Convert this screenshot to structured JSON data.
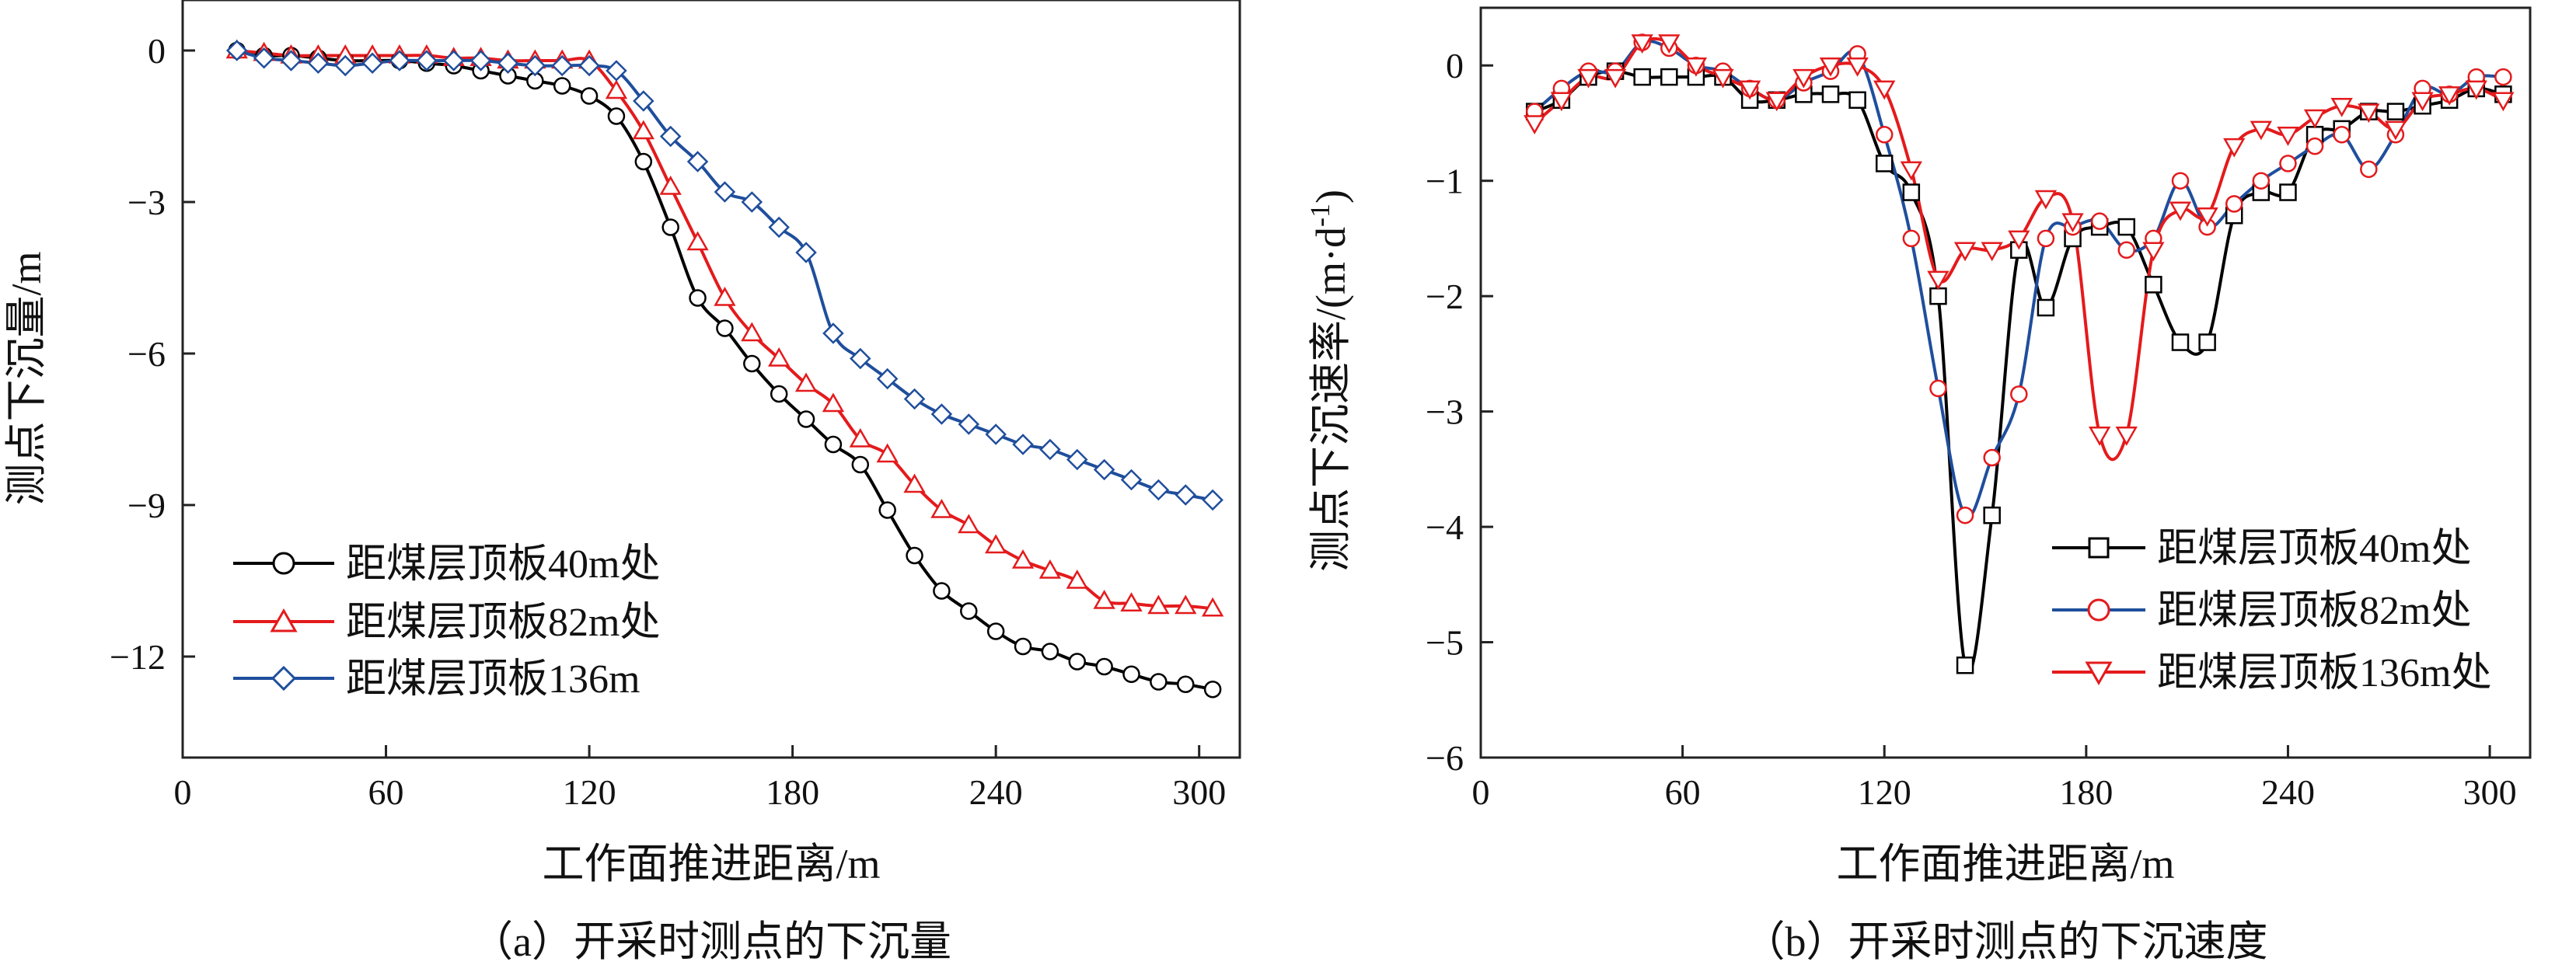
{
  "chart_data": [
    {
      "type": "line",
      "caption": "（a）开采时测点的下沉量",
      "xlabel": "工作面推进距离/m",
      "ylabel": "测点下沉量/m",
      "xlim": [
        0,
        312
      ],
      "ylim": [
        -14,
        1
      ],
      "xticks": [
        0,
        60,
        120,
        180,
        240,
        300
      ],
      "yticks": [
        0,
        -3,
        -6,
        -9,
        -12
      ],
      "ytick_labels": [
        "0",
        "−3",
        "−6",
        "−9",
        "−12"
      ],
      "legend_position": "bottom-left",
      "colors": {
        "s1": "#000000",
        "s2": "#e41a1c",
        "s3": "#1f4e9c"
      },
      "series": [
        {
          "name": "距煤层顶板40m处",
          "marker": "circle",
          "x": [
            16,
            24,
            32,
            40,
            48,
            56,
            64,
            72,
            80,
            88,
            96,
            104,
            112,
            120,
            128,
            136,
            144,
            152,
            160,
            168,
            176,
            184,
            192,
            200,
            208,
            216,
            224,
            232,
            240,
            248,
            256,
            264,
            272,
            280,
            288,
            296,
            304
          ],
          "y": [
            0,
            -0.1,
            -0.1,
            -0.15,
            -0.2,
            -0.2,
            -0.2,
            -0.25,
            -0.3,
            -0.4,
            -0.5,
            -0.6,
            -0.7,
            -0.9,
            -1.3,
            -2.2,
            -3.5,
            -4.9,
            -5.5,
            -6.2,
            -6.8,
            -7.3,
            -7.8,
            -8.2,
            -9.1,
            -10,
            -10.7,
            -11.1,
            -11.5,
            -11.8,
            -11.9,
            -12.1,
            -12.2,
            -12.35,
            -12.5,
            -12.55,
            -12.65
          ]
        },
        {
          "name": "距煤层顶板82m处",
          "marker": "triangle-up",
          "x": [
            16,
            24,
            32,
            40,
            48,
            56,
            64,
            72,
            80,
            88,
            96,
            104,
            112,
            120,
            128,
            136,
            144,
            152,
            160,
            168,
            176,
            184,
            192,
            200,
            208,
            216,
            224,
            232,
            240,
            248,
            256,
            264,
            272,
            280,
            288,
            296,
            304
          ],
          "y": [
            0,
            -0.05,
            -0.1,
            -0.1,
            -0.1,
            -0.1,
            -0.1,
            -0.1,
            -0.15,
            -0.15,
            -0.2,
            -0.2,
            -0.2,
            -0.2,
            -0.8,
            -1.6,
            -2.7,
            -3.8,
            -4.9,
            -5.6,
            -6.1,
            -6.6,
            -7.0,
            -7.7,
            -8.0,
            -8.6,
            -9.1,
            -9.4,
            -9.8,
            -10.1,
            -10.3,
            -10.5,
            -10.9,
            -10.95,
            -11.0,
            -11.0,
            -11.05
          ]
        },
        {
          "name": "距煤层顶板136m",
          "marker": "diamond",
          "x": [
            16,
            24,
            32,
            40,
            48,
            56,
            64,
            72,
            80,
            88,
            96,
            104,
            112,
            120,
            128,
            136,
            144,
            152,
            160,
            168,
            176,
            184,
            192,
            200,
            208,
            216,
            224,
            232,
            240,
            248,
            256,
            264,
            272,
            280,
            288,
            296,
            304
          ],
          "y": [
            0,
            -0.15,
            -0.2,
            -0.25,
            -0.3,
            -0.25,
            -0.2,
            -0.2,
            -0.2,
            -0.2,
            -0.25,
            -0.3,
            -0.3,
            -0.3,
            -0.4,
            -1.0,
            -1.7,
            -2.2,
            -2.8,
            -3.0,
            -3.5,
            -4.0,
            -5.6,
            -6.1,
            -6.5,
            -6.9,
            -7.2,
            -7.4,
            -7.6,
            -7.8,
            -7.9,
            -8.1,
            -8.3,
            -8.5,
            -8.7,
            -8.8,
            -8.9
          ]
        }
      ]
    },
    {
      "type": "line",
      "caption": "（b）开采时测点的下沉速度",
      "xlabel": "工作面推进距离/m",
      "ylabel": "测点下沉速率/(m·d",
      "ylabel_superscript": "-1",
      "ylabel_close": ")",
      "xlim": [
        0,
        312
      ],
      "ylim": [
        -6,
        0.5
      ],
      "xticks": [
        0,
        60,
        120,
        180,
        240,
        300
      ],
      "yticks": [
        0,
        -1,
        -2,
        -3,
        -4,
        -5,
        -6
      ],
      "ytick_labels": [
        "0",
        "−1",
        "−2",
        "−3",
        "−4",
        "−5",
        "−6"
      ],
      "legend_position": "bottom-right",
      "colors": {
        "s1": "#000000",
        "s2": "#1f4e9c",
        "s3": "#e41a1c"
      },
      "series": [
        {
          "name": "距煤层顶板40m处",
          "marker": "square",
          "x": [
            16,
            24,
            32,
            40,
            48,
            56,
            64,
            72,
            80,
            88,
            96,
            104,
            112,
            120,
            128,
            136,
            144,
            152,
            160,
            168,
            176,
            184,
            192,
            200,
            208,
            216,
            224,
            232,
            240,
            248,
            256,
            264,
            272,
            280,
            288,
            296,
            304
          ],
          "y": [
            -0.4,
            -0.3,
            -0.1,
            -0.05,
            -0.1,
            -0.1,
            -0.1,
            -0.1,
            -0.3,
            -0.3,
            -0.25,
            -0.25,
            -0.3,
            -0.85,
            -1.1,
            -2.0,
            -5.2,
            -3.9,
            -1.6,
            -2.1,
            -1.5,
            -1.4,
            -1.4,
            -1.9,
            -2.4,
            -2.4,
            -1.3,
            -1.1,
            -1.1,
            -0.6,
            -0.55,
            -0.4,
            -0.4,
            -0.35,
            -0.3,
            -0.2,
            -0.25
          ]
        },
        {
          "name": "距煤层顶板82m处",
          "marker": "circle",
          "x": [
            16,
            24,
            32,
            40,
            48,
            56,
            64,
            72,
            80,
            88,
            96,
            104,
            112,
            120,
            128,
            136,
            144,
            152,
            160,
            168,
            176,
            184,
            192,
            200,
            208,
            216,
            224,
            232,
            240,
            248,
            256,
            264,
            272,
            280,
            288,
            296,
            304
          ],
          "y": [
            -0.4,
            -0.2,
            -0.05,
            -0.05,
            0.2,
            0.15,
            0,
            -0.05,
            -0.2,
            -0.3,
            -0.15,
            -0.05,
            0.1,
            -0.6,
            -1.5,
            -2.8,
            -3.9,
            -3.4,
            -2.85,
            -1.5,
            -1.4,
            -1.35,
            -1.6,
            -1.5,
            -1.0,
            -1.4,
            -1.2,
            -1.0,
            -0.85,
            -0.7,
            -0.6,
            -0.9,
            -0.6,
            -0.2,
            -0.25,
            -0.1,
            -0.1
          ]
        },
        {
          "name": "距煤层顶板136m处",
          "marker": "triangle-down",
          "x": [
            16,
            24,
            32,
            40,
            48,
            56,
            64,
            72,
            80,
            88,
            96,
            104,
            112,
            120,
            128,
            136,
            144,
            152,
            160,
            168,
            176,
            184,
            192,
            200,
            208,
            216,
            224,
            232,
            240,
            248,
            256,
            264,
            272,
            280,
            288,
            296,
            304
          ],
          "y": [
            -0.5,
            -0.3,
            -0.1,
            -0.1,
            0.2,
            0.2,
            0,
            -0.1,
            -0.2,
            -0.3,
            -0.1,
            0,
            0,
            -0.2,
            -0.9,
            -1.85,
            -1.6,
            -1.6,
            -1.5,
            -1.15,
            -1.35,
            -3.2,
            -3.2,
            -1.6,
            -1.25,
            -1.3,
            -0.7,
            -0.55,
            -0.6,
            -0.45,
            -0.35,
            -0.4,
            -0.55,
            -0.3,
            -0.25,
            -0.2,
            -0.3
          ]
        }
      ]
    }
  ]
}
